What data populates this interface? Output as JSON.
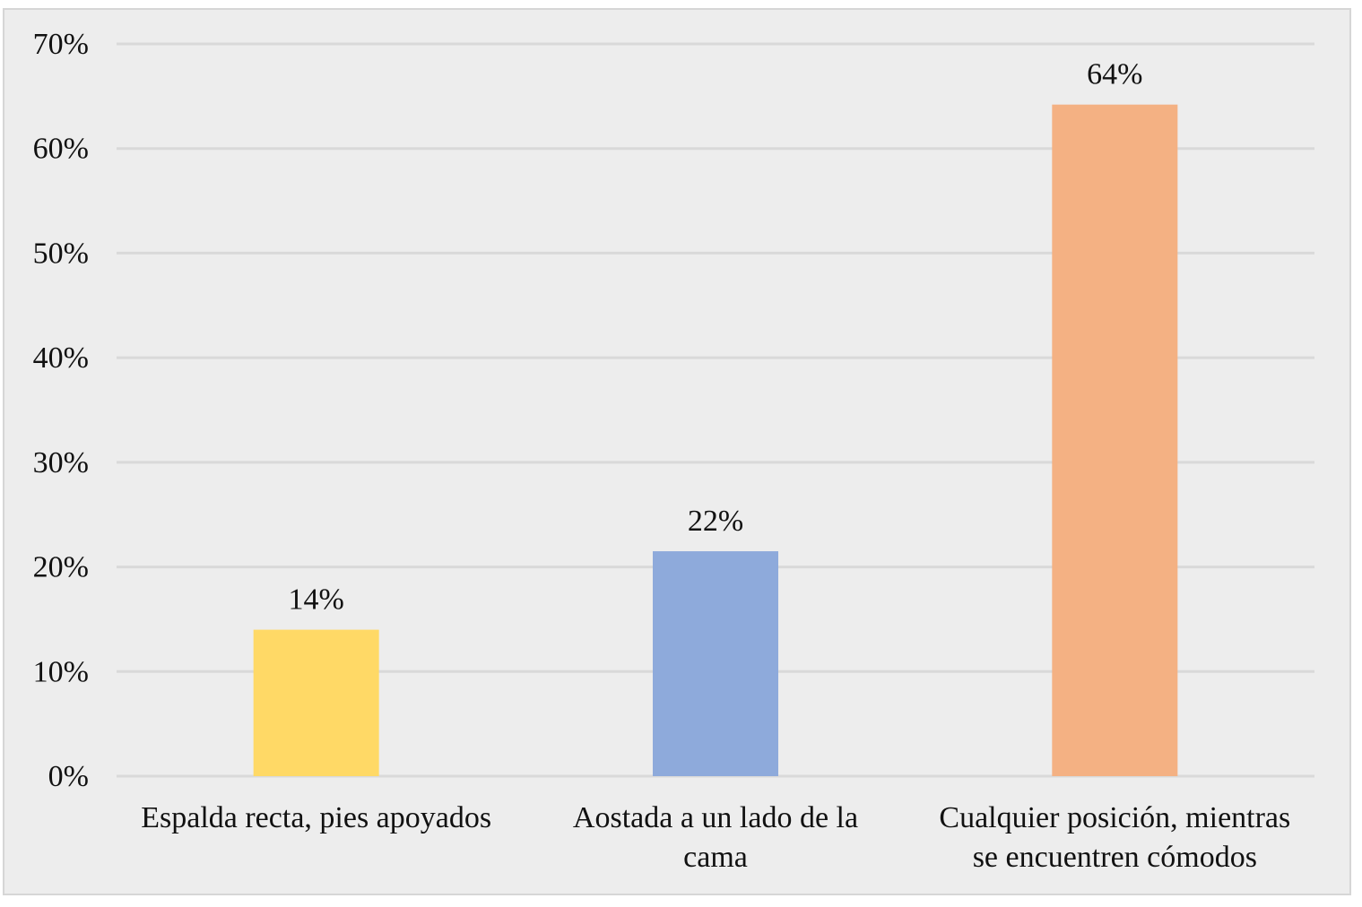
{
  "chart_data": {
    "type": "bar",
    "title": "",
    "xlabel": "",
    "ylabel": "",
    "ylim": [
      0,
      70
    ],
    "yticks": [
      0,
      10,
      20,
      30,
      40,
      50,
      60,
      70
    ],
    "ytick_labels": [
      "0%",
      "10%",
      "20%",
      "30%",
      "40%",
      "50%",
      "60%",
      "70%"
    ],
    "grid": true,
    "legend": "none",
    "categories": [
      [
        "Espalda recta, pies apoyados"
      ],
      [
        "Aostada a un lado de la",
        "cama"
      ],
      [
        "Cualquier posición, mientras",
        "se encuentren cómodos"
      ]
    ],
    "values": [
      14,
      21.5,
      64.2
    ],
    "data_labels": [
      "14%",
      "22%",
      "64%"
    ],
    "colors": [
      "#ffd966",
      "#8eaadb",
      "#f4b183"
    ]
  },
  "colors": {
    "plot_background": "#ededed",
    "gridline": "#d9d9d9",
    "frame_border": "#d6d6d6"
  }
}
